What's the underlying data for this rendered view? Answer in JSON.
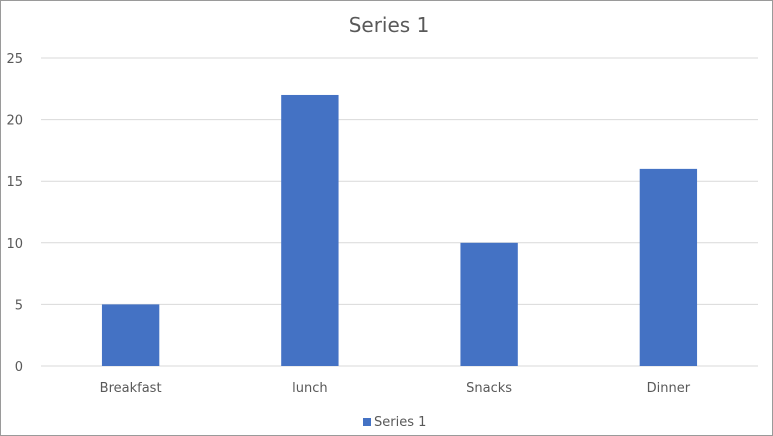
{
  "chart_data": {
    "type": "bar",
    "title": "Series 1",
    "categories": [
      "Breakfast",
      "lunch",
      "Snacks",
      "Dinner"
    ],
    "series": [
      {
        "name": "Series 1",
        "values": [
          5,
          22,
          10,
          16
        ]
      }
    ],
    "ylim": [
      0,
      25
    ],
    "yticks": [
      "0",
      "5",
      "10",
      "15",
      "20",
      "25"
    ],
    "grid": true,
    "legend": "bottom",
    "colors": {
      "bar": "#4472C4",
      "grid": "#d9d9d9",
      "text": "#595959"
    }
  }
}
